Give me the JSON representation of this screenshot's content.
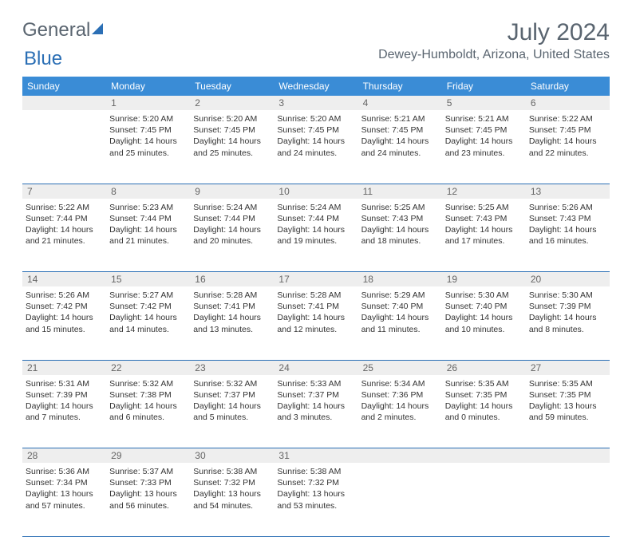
{
  "brand": {
    "part1": "General",
    "part2": "Blue"
  },
  "title": {
    "month": "July 2024",
    "location": "Dewey-Humboldt, Arizona, United States"
  },
  "colors": {
    "header_bg": "#3a8cd6",
    "header_text": "#ffffff",
    "daynum_bg": "#eeeeee",
    "daynum_text": "#666666",
    "rule": "#2b6fb5",
    "body_text": "#333333",
    "title_text": "#5a6570",
    "brand_blue": "#2b6fb5"
  },
  "typography": {
    "header_fontsize": 12,
    "body_fontsize": 10.5,
    "month_fontsize": 30,
    "location_fontsize": 16
  },
  "columns": [
    "Sunday",
    "Monday",
    "Tuesday",
    "Wednesday",
    "Thursday",
    "Friday",
    "Saturday"
  ],
  "weeks": [
    [
      null,
      {
        "n": "1",
        "sr": "5:20 AM",
        "ss": "7:45 PM",
        "dl": "14 hours and 25 minutes."
      },
      {
        "n": "2",
        "sr": "5:20 AM",
        "ss": "7:45 PM",
        "dl": "14 hours and 25 minutes."
      },
      {
        "n": "3",
        "sr": "5:20 AM",
        "ss": "7:45 PM",
        "dl": "14 hours and 24 minutes."
      },
      {
        "n": "4",
        "sr": "5:21 AM",
        "ss": "7:45 PM",
        "dl": "14 hours and 24 minutes."
      },
      {
        "n": "5",
        "sr": "5:21 AM",
        "ss": "7:45 PM",
        "dl": "14 hours and 23 minutes."
      },
      {
        "n": "6",
        "sr": "5:22 AM",
        "ss": "7:45 PM",
        "dl": "14 hours and 22 minutes."
      }
    ],
    [
      {
        "n": "7",
        "sr": "5:22 AM",
        "ss": "7:44 PM",
        "dl": "14 hours and 21 minutes."
      },
      {
        "n": "8",
        "sr": "5:23 AM",
        "ss": "7:44 PM",
        "dl": "14 hours and 21 minutes."
      },
      {
        "n": "9",
        "sr": "5:24 AM",
        "ss": "7:44 PM",
        "dl": "14 hours and 20 minutes."
      },
      {
        "n": "10",
        "sr": "5:24 AM",
        "ss": "7:44 PM",
        "dl": "14 hours and 19 minutes."
      },
      {
        "n": "11",
        "sr": "5:25 AM",
        "ss": "7:43 PM",
        "dl": "14 hours and 18 minutes."
      },
      {
        "n": "12",
        "sr": "5:25 AM",
        "ss": "7:43 PM",
        "dl": "14 hours and 17 minutes."
      },
      {
        "n": "13",
        "sr": "5:26 AM",
        "ss": "7:43 PM",
        "dl": "14 hours and 16 minutes."
      }
    ],
    [
      {
        "n": "14",
        "sr": "5:26 AM",
        "ss": "7:42 PM",
        "dl": "14 hours and 15 minutes."
      },
      {
        "n": "15",
        "sr": "5:27 AM",
        "ss": "7:42 PM",
        "dl": "14 hours and 14 minutes."
      },
      {
        "n": "16",
        "sr": "5:28 AM",
        "ss": "7:41 PM",
        "dl": "14 hours and 13 minutes."
      },
      {
        "n": "17",
        "sr": "5:28 AM",
        "ss": "7:41 PM",
        "dl": "14 hours and 12 minutes."
      },
      {
        "n": "18",
        "sr": "5:29 AM",
        "ss": "7:40 PM",
        "dl": "14 hours and 11 minutes."
      },
      {
        "n": "19",
        "sr": "5:30 AM",
        "ss": "7:40 PM",
        "dl": "14 hours and 10 minutes."
      },
      {
        "n": "20",
        "sr": "5:30 AM",
        "ss": "7:39 PM",
        "dl": "14 hours and 8 minutes."
      }
    ],
    [
      {
        "n": "21",
        "sr": "5:31 AM",
        "ss": "7:39 PM",
        "dl": "14 hours and 7 minutes."
      },
      {
        "n": "22",
        "sr": "5:32 AM",
        "ss": "7:38 PM",
        "dl": "14 hours and 6 minutes."
      },
      {
        "n": "23",
        "sr": "5:32 AM",
        "ss": "7:37 PM",
        "dl": "14 hours and 5 minutes."
      },
      {
        "n": "24",
        "sr": "5:33 AM",
        "ss": "7:37 PM",
        "dl": "14 hours and 3 minutes."
      },
      {
        "n": "25",
        "sr": "5:34 AM",
        "ss": "7:36 PM",
        "dl": "14 hours and 2 minutes."
      },
      {
        "n": "26",
        "sr": "5:35 AM",
        "ss": "7:35 PM",
        "dl": "14 hours and 0 minutes."
      },
      {
        "n": "27",
        "sr": "5:35 AM",
        "ss": "7:35 PM",
        "dl": "13 hours and 59 minutes."
      }
    ],
    [
      {
        "n": "28",
        "sr": "5:36 AM",
        "ss": "7:34 PM",
        "dl": "13 hours and 57 minutes."
      },
      {
        "n": "29",
        "sr": "5:37 AM",
        "ss": "7:33 PM",
        "dl": "13 hours and 56 minutes."
      },
      {
        "n": "30",
        "sr": "5:38 AM",
        "ss": "7:32 PM",
        "dl": "13 hours and 54 minutes."
      },
      {
        "n": "31",
        "sr": "5:38 AM",
        "ss": "7:32 PM",
        "dl": "13 hours and 53 minutes."
      },
      null,
      null,
      null
    ]
  ],
  "labels": {
    "sunrise": "Sunrise: ",
    "sunset": "Sunset: ",
    "daylight": "Daylight: "
  }
}
